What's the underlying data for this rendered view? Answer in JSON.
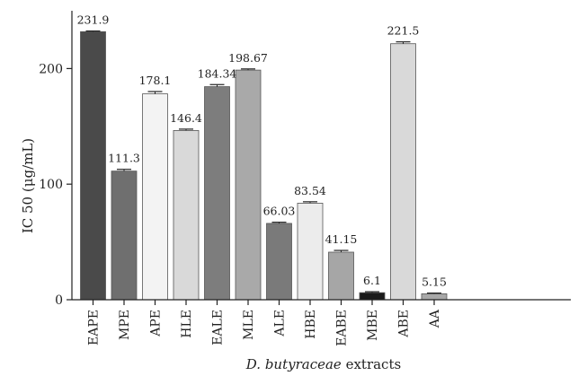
{
  "chart_data": {
    "type": "bar",
    "title": "",
    "xlabel_main": "D. butyraceae",
    "xlabel_rest": " extracts",
    "ylabel": "IC 50 (μg/mL)",
    "ylim": [
      0,
      250
    ],
    "yticks": [
      0,
      100,
      200
    ],
    "grid": false,
    "categories": [
      "EAPE",
      "MPE",
      "APE",
      "HLE",
      "EALE",
      "MLE",
      "ALE",
      "HBE",
      "EABE",
      "MBE",
      "ABE",
      "AA"
    ],
    "values": [
      231.9,
      111.3,
      178.1,
      146.4,
      184.34,
      198.67,
      66.03,
      83.54,
      41.15,
      6.1,
      221.5,
      5.15
    ],
    "value_labels": [
      "231.9",
      "111.3",
      "178.1",
      "146.4",
      "184.34",
      "198.67",
      "66.03",
      "83.54",
      "41.15",
      "6.1",
      "221.5",
      "5.15"
    ],
    "errors": [
      0.6,
      1.5,
      2.0,
      1.2,
      1.8,
      1.0,
      1.0,
      1.2,
      1.5,
      0.8,
      1.6,
      0.6
    ],
    "colors": [
      "#4a4a4a",
      "#6f6f6f",
      "#f3f3f3",
      "#d9d9d9",
      "#7d7d7d",
      "#a9a9a9",
      "#7a7a7a",
      "#ececec",
      "#a6a6a6",
      "#1a1a1a",
      "#d9d9d9",
      "#a8a8a8"
    ]
  }
}
